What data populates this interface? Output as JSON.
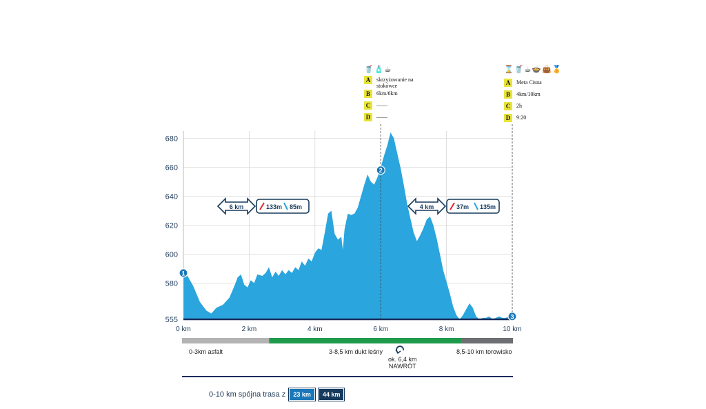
{
  "chart_data": {
    "type": "area",
    "xlabel": "",
    "ylabel": "",
    "xlim": [
      0,
      10
    ],
    "ylim": [
      555,
      685
    ],
    "x_tick_labels": [
      "0 km",
      "2 km",
      "4 km",
      "6 km",
      "8 km",
      "10 km"
    ],
    "x_ticks": [
      0,
      2,
      4,
      6,
      8,
      10
    ],
    "y_tick_labels": [
      "555",
      "580",
      "600",
      "620",
      "640",
      "660",
      "680"
    ],
    "y_ticks": [
      555,
      580,
      600,
      620,
      640,
      660,
      680
    ],
    "grid": true,
    "fill_color": "#2aa5dd",
    "baseline_color": "#1b2d5c",
    "x": [
      0,
      0.1,
      0.3,
      0.5,
      0.7,
      0.85,
      1.0,
      1.2,
      1.4,
      1.55,
      1.65,
      1.75,
      1.85,
      1.95,
      2.05,
      2.15,
      2.25,
      2.4,
      2.5,
      2.6,
      2.7,
      2.8,
      2.9,
      3.0,
      3.1,
      3.2,
      3.3,
      3.4,
      3.5,
      3.6,
      3.7,
      3.8,
      3.9,
      4.0,
      4.1,
      4.2,
      4.3,
      4.4,
      4.5,
      4.55,
      4.6,
      4.7,
      4.8,
      4.85,
      4.9,
      5.0,
      5.1,
      5.2,
      5.3,
      5.4,
      5.5,
      5.6,
      5.7,
      5.8,
      5.9,
      6.0,
      6.1,
      6.2,
      6.3,
      6.4,
      6.5,
      6.6,
      6.7,
      6.8,
      6.9,
      7.0,
      7.1,
      7.2,
      7.3,
      7.4,
      7.5,
      7.6,
      7.7,
      7.8,
      7.9,
      8.0,
      8.1,
      8.2,
      8.3,
      8.4,
      8.5,
      8.6,
      8.7,
      8.8,
      8.9,
      9.0,
      9.1,
      9.2,
      9.3,
      9.4,
      9.5,
      9.6,
      9.7,
      9.8,
      9.9,
      10.0
    ],
    "y": [
      584,
      586,
      578,
      567,
      561,
      559,
      563,
      565,
      570,
      578,
      584,
      586,
      579,
      577,
      582,
      580,
      586,
      585,
      587,
      591,
      584,
      588,
      585,
      589,
      586,
      589,
      587,
      591,
      589,
      595,
      592,
      597,
      595,
      601,
      604,
      603,
      615,
      628,
      630,
      622,
      614,
      610,
      612,
      603,
      617,
      628,
      627,
      628,
      632,
      640,
      648,
      655,
      650,
      648,
      653,
      660,
      668,
      675,
      684,
      680,
      670,
      660,
      648,
      635,
      625,
      615,
      609,
      613,
      618,
      624,
      626,
      620,
      611,
      600,
      589,
      581,
      573,
      564,
      558,
      555,
      558,
      562,
      566,
      563,
      557,
      555,
      556,
      556,
      557,
      555,
      556,
      557,
      556,
      556,
      557,
      560
    ],
    "waypoints": [
      {
        "label": "1",
        "x": 0,
        "y": 587
      },
      {
        "label": "2",
        "x": 6,
        "y": 658
      },
      {
        "label": "3",
        "x": 10,
        "y": 557
      }
    ]
  },
  "segments": [
    {
      "label": "0-3km asfalt",
      "from": 0,
      "to": 2.65,
      "color": "#b3b3b3"
    },
    {
      "label": "3-8,5 km dukt leśny",
      "from": 2.65,
      "to": 8.5,
      "color": "#1f9a4c"
    },
    {
      "label": "8,5-10 km torowisko",
      "from": 8.5,
      "to": 10,
      "color": "#6d6e71"
    }
  ],
  "turnaround": {
    "line1": "ok. 6,4 km",
    "line2": "NAWRÓT",
    "icon": "u-turn-arrow-icon"
  },
  "legs": [
    {
      "distance": "6 km",
      "ascent": "133m",
      "descent": "85m"
    },
    {
      "distance": "4 km",
      "ascent": "37m",
      "descent": "135m"
    }
  ],
  "checkpoint_2": {
    "icons": "🥤🧴☕",
    "rows": [
      {
        "key": "A",
        "value": "skrzyżowanie na stokówce"
      },
      {
        "key": "B",
        "value": "6km/6km"
      },
      {
        "key": "C",
        "value": "——"
      },
      {
        "key": "D",
        "value": "——"
      }
    ]
  },
  "checkpoint_3": {
    "icons": "⌛🥤☕🍲👜🏅",
    "rows": [
      {
        "key": "A",
        "value": "Meta Cisna"
      },
      {
        "key": "B",
        "value": "4km/10km"
      },
      {
        "key": "C",
        "value": "2h"
      },
      {
        "key": "D",
        "value": "9:20"
      }
    ]
  },
  "footer": {
    "text": "0-10 km spójna trasa z",
    "badges": [
      {
        "label": "23 km",
        "color": "#1b77b8"
      },
      {
        "label": "44 km",
        "color": "#163a5c"
      }
    ]
  }
}
